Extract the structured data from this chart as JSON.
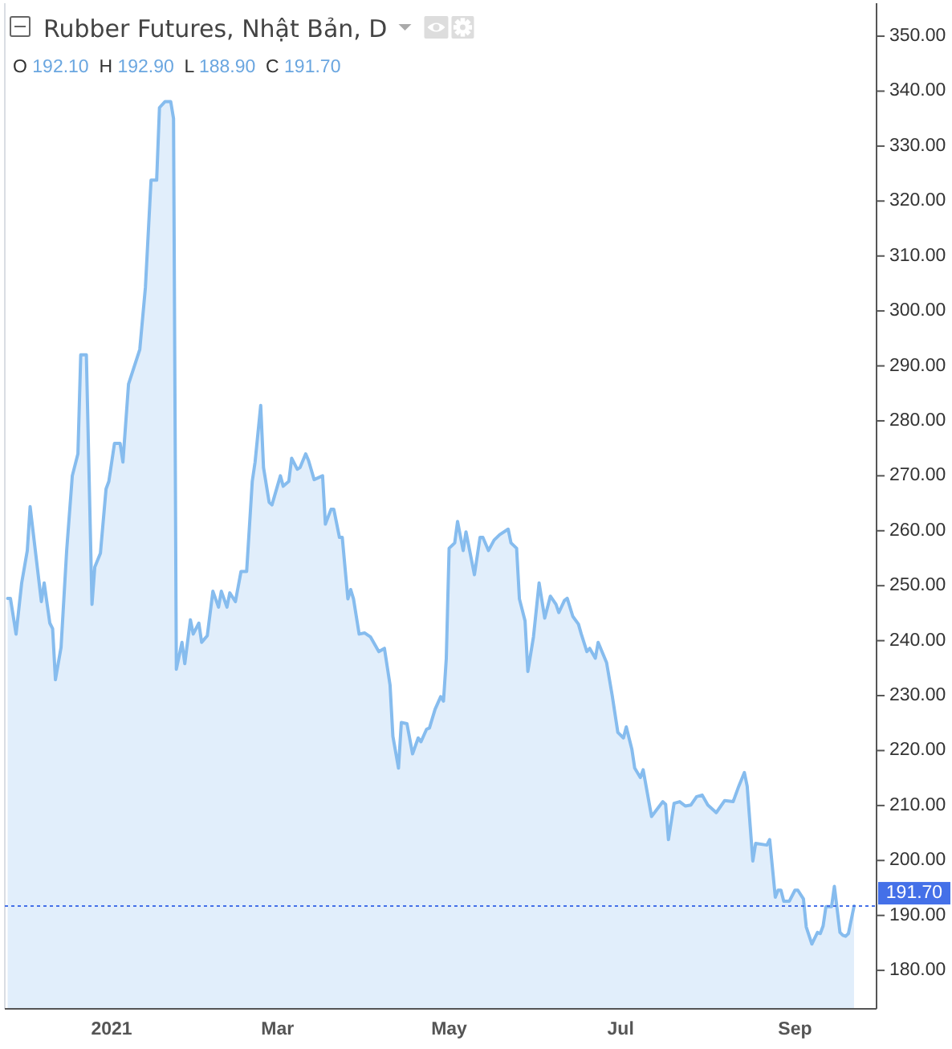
{
  "chart_data": {
    "type": "area",
    "title": "Rubber Futures, Nhật Bản, D",
    "annotations": [
      "O 192.10 H 192.90 L 188.90 C 191.70"
    ],
    "color": "#86bcee",
    "x": [
      "2020-11-25",
      "2020-11-26",
      "2020-11-28",
      "2020-11-30",
      "2020-12-02",
      "2020-12-03",
      "2020-12-07",
      "2020-12-08",
      "2020-12-10",
      "2020-12-11",
      "2020-12-12",
      "2020-12-14",
      "2020-12-16",
      "2020-12-18",
      "2020-12-20",
      "2020-12-21",
      "2020-12-23",
      "2020-12-25",
      "2020-12-26",
      "2020-12-28",
      "2020-12-30",
      "2020-12-31",
      "2021-01-02",
      "2021-01-04",
      "2021-01-05",
      "2021-01-07",
      "2021-01-11",
      "2021-01-13",
      "2021-01-15",
      "2021-01-17",
      "2021-01-18",
      "2021-01-20",
      "2021-01-22",
      "2021-01-23",
      "2021-01-24",
      "2021-01-26",
      "2021-01-27",
      "2021-01-29",
      "2021-01-30",
      "2021-02-01",
      "2021-02-02",
      "2021-02-04",
      "2021-02-06",
      "2021-02-08",
      "2021-02-09",
      "2021-02-11",
      "2021-02-12",
      "2021-02-14",
      "2021-02-16",
      "2021-02-18",
      "2021-02-20",
      "2021-02-21",
      "2021-02-23",
      "2021-02-24",
      "2021-02-26",
      "2021-02-27",
      "2021-03-02",
      "2021-03-03",
      "2021-03-05",
      "2021-03-06",
      "2021-03-08",
      "2021-03-09",
      "2021-03-11",
      "2021-03-12",
      "2021-03-14",
      "2021-03-17",
      "2021-03-18",
      "2021-03-20",
      "2021-03-21",
      "2021-03-23",
      "2021-03-24",
      "2021-03-26",
      "2021-03-27",
      "2021-03-28",
      "2021-03-30",
      "2021-04-01",
      "2021-04-03",
      "2021-04-06",
      "2021-04-08",
      "2021-04-10",
      "2021-04-11",
      "2021-04-13",
      "2021-04-14",
      "2021-04-16",
      "2021-04-18",
      "2021-04-20",
      "2021-04-21",
      "2021-04-23",
      "2021-04-24",
      "2021-04-26",
      "2021-04-28",
      "2021-04-29",
      "2021-04-30",
      "2021-05-01",
      "2021-05-03",
      "2021-05-04",
      "2021-05-06",
      "2021-05-07",
      "2021-05-10",
      "2021-05-12",
      "2021-05-13",
      "2021-05-15",
      "2021-05-17",
      "2021-05-19",
      "2021-05-22",
      "2021-05-23",
      "2021-05-25",
      "2021-05-26",
      "2021-05-28",
      "2021-05-29",
      "2021-05-31",
      "2021-06-02",
      "2021-06-04",
      "2021-06-06",
      "2021-06-08",
      "2021-06-09",
      "2021-06-11",
      "2021-06-12",
      "2021-06-14",
      "2021-06-16",
      "2021-06-17",
      "2021-06-19",
      "2021-06-20",
      "2021-06-22",
      "2021-06-23",
      "2021-06-26",
      "2021-06-28",
      "2021-06-30",
      "2021-07-02",
      "2021-07-03",
      "2021-07-05",
      "2021-07-06",
      "2021-07-08",
      "2021-07-09",
      "2021-07-12",
      "2021-07-16",
      "2021-07-17",
      "2021-07-18",
      "2021-07-20",
      "2021-07-22",
      "2021-07-24",
      "2021-07-26",
      "2021-07-28",
      "2021-07-30",
      "2021-08-01",
      "2021-08-04",
      "2021-08-07",
      "2021-08-10",
      "2021-08-12",
      "2021-08-14",
      "2021-08-15",
      "2021-08-17",
      "2021-08-18",
      "2021-08-22",
      "2021-08-23",
      "2021-08-25",
      "2021-08-26",
      "2021-08-27",
      "2021-08-28",
      "2021-08-30",
      "2021-09-01",
      "2021-09-02",
      "2021-09-04",
      "2021-09-05",
      "2021-09-07",
      "2021-09-09",
      "2021-09-10",
      "2021-09-11",
      "2021-09-12",
      "2021-09-14",
      "2021-09-15",
      "2021-09-17",
      "2021-09-18",
      "2021-09-19",
      "2021-09-20",
      "2021-09-22"
    ],
    "values": [
      247.7,
      247.7,
      241.2,
      250.5,
      256.4,
      264.4,
      247.1,
      250.5,
      243.2,
      242.2,
      232.9,
      238.8,
      256.4,
      270,
      274,
      292,
      292,
      246.6,
      253.4,
      255.9,
      267.6,
      269,
      275.9,
      275.9,
      272.5,
      286.7,
      293,
      304.3,
      323.8,
      323.8,
      337,
      338.1,
      338.1,
      335,
      234.8,
      239.7,
      235.8,
      243.8,
      241.2,
      243.2,
      239.7,
      240.9,
      249,
      246.1,
      249,
      246.1,
      248.7,
      247.1,
      252.6,
      252.6,
      269,
      272.5,
      282.8,
      271.5,
      265.2,
      264.7,
      270,
      268.1,
      269,
      273.2,
      271.2,
      271.5,
      274,
      272.8,
      269.3,
      270,
      261.2,
      263.9,
      263.9,
      258.8,
      258.8,
      247.6,
      249.3,
      247.6,
      241.2,
      241.4,
      240.7,
      238,
      238.6,
      231.9,
      222.6,
      216.8,
      225.1,
      224.9,
      219.4,
      222.3,
      221.6,
      223.9,
      224.1,
      227.5,
      229.8,
      229,
      236.8,
      256.8,
      257.8,
      261.7,
      256.4,
      259.8,
      252,
      258.8,
      258.8,
      256.4,
      258.3,
      259.3,
      260.3,
      257.8,
      256.8,
      247.6,
      243.6,
      234.4,
      240.7,
      250.5,
      244.1,
      248.1,
      246.6,
      245.1,
      247.3,
      247.7,
      244.4,
      243,
      241.2,
      238,
      238.6,
      236.8,
      239.7,
      236,
      230,
      223.3,
      222.3,
      224.3,
      220.2,
      216.8,
      215.1,
      216.5,
      208,
      210.7,
      210.2,
      203.8,
      210.4,
      210.7,
      209.9,
      210.1,
      211.6,
      211.9,
      210.1,
      208.7,
      210.9,
      210.7,
      213.5,
      216,
      213.5,
      199.9,
      203.1,
      202.8,
      203.8,
      193.3,
      194.6,
      194.6,
      192.6,
      192.6,
      194.6,
      194.6,
      193,
      187.9,
      184.8,
      186.9,
      186.7,
      188.1,
      191.6,
      191.6,
      195.3,
      186.9,
      186.4,
      186.2,
      186.7,
      191.7
    ],
    "xlim": [
      "2020-11-24",
      "2021-09-30"
    ],
    "xticks": [
      {
        "value": "2021-01-01",
        "label": "2021"
      },
      {
        "value": "2021-03-01",
        "label": "Mar"
      },
      {
        "value": "2021-05-01",
        "label": "May"
      },
      {
        "value": "2021-07-01",
        "label": "Jul"
      },
      {
        "value": "2021-09-01",
        "label": "Sep"
      }
    ],
    "ylim": [
      173,
      356
    ],
    "yticks": [
      {
        "value": 180,
        "label": "180.00"
      },
      {
        "value": 190,
        "label": "190.00"
      },
      {
        "value": 200,
        "label": "200.00"
      },
      {
        "value": 210,
        "label": "210.00"
      },
      {
        "value": 220,
        "label": "220.00"
      },
      {
        "value": 230,
        "label": "230.00"
      },
      {
        "value": 240,
        "label": "240.00"
      },
      {
        "value": 250,
        "label": "250.00"
      },
      {
        "value": 260,
        "label": "260.00"
      },
      {
        "value": 270,
        "label": "270.00"
      },
      {
        "value": 280,
        "label": "280.00"
      },
      {
        "value": 290,
        "label": "290.00"
      },
      {
        "value": 300,
        "label": "300.00"
      },
      {
        "value": 310,
        "label": "310.00"
      },
      {
        "value": 320,
        "label": "320.00"
      },
      {
        "value": 330,
        "label": "330.00"
      },
      {
        "value": 340,
        "label": "340.00"
      },
      {
        "value": 350,
        "label": "350.00"
      }
    ],
    "ref_lines": [
      {
        "axis": "y",
        "value": 191.7,
        "label": "191.70",
        "color": "#4470e8",
        "line_style": "dotted"
      }
    ]
  }
}
